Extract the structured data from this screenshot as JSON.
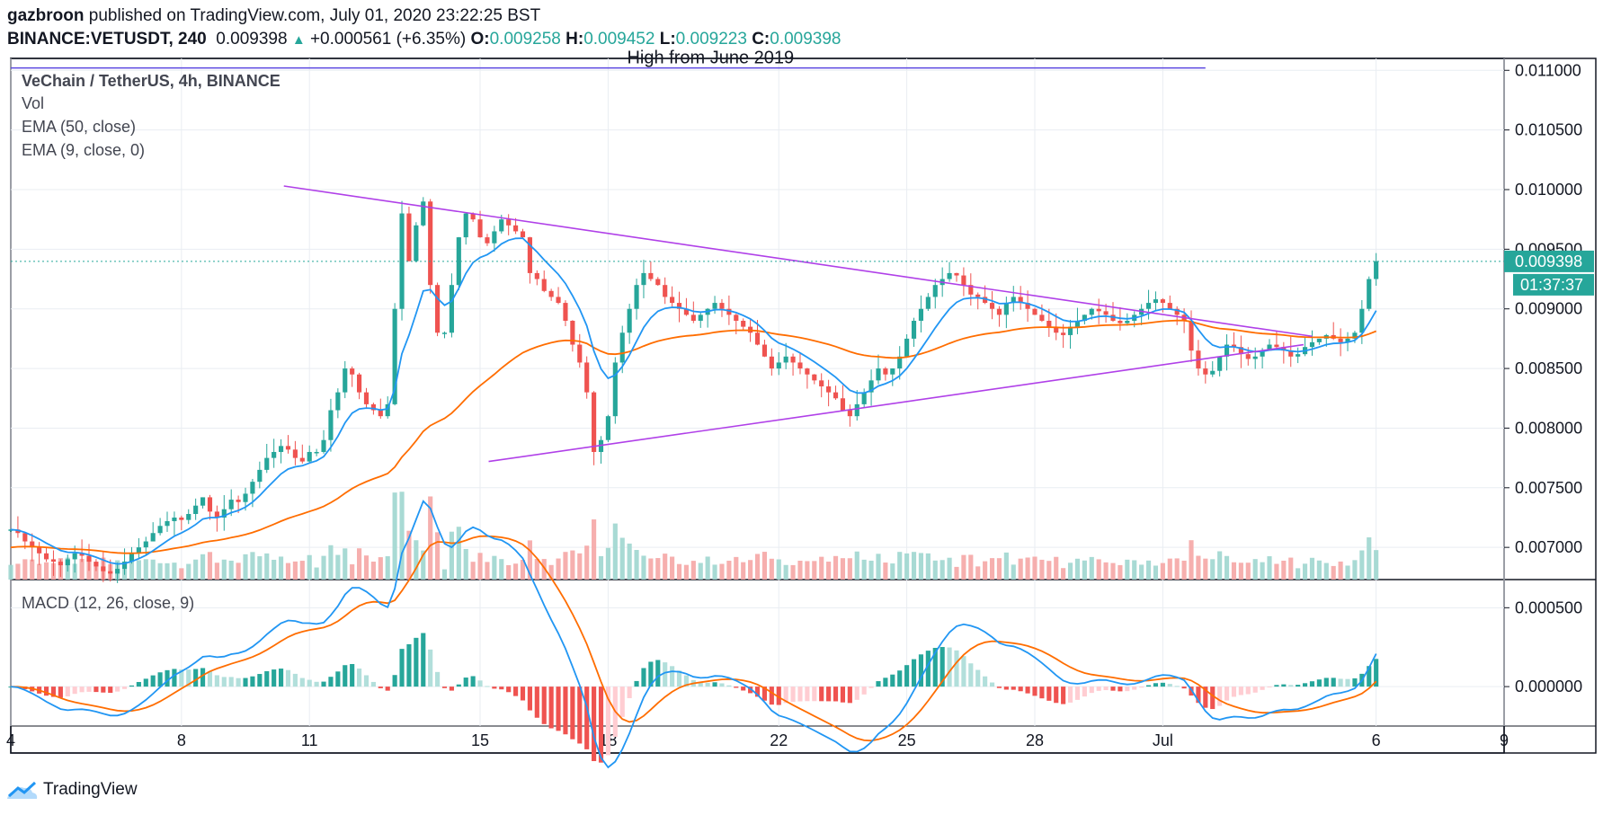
{
  "header": {
    "author": "gazbroon",
    "published_text": "published on TradingView.com, July 01, 2020 23:22:25 BST",
    "symbol": "BINANCE:VETUSDT, 240",
    "last": "0.009398",
    "change": "+0.000561 (+6.35%)",
    "o_label": "O:",
    "o": "0.009258",
    "h_label": "H:",
    "h": "0.009452",
    "l_label": "L:",
    "l": "0.009223",
    "c_label": "C:",
    "c": "0.009398"
  },
  "legend": {
    "title": "VeChain / TetherUS, 4h, BINANCE",
    "vol": "Vol",
    "ema50": "EMA (50, close)",
    "ema9": "EMA (9, close, 0)",
    "macd": "MACD (12, 26, close, 9)"
  },
  "annotation": {
    "text": "High from June 2019"
  },
  "price_badge": {
    "price": "0.009398",
    "countdown": "01:37:37"
  },
  "footer": {
    "brand": "TradingView"
  },
  "colors": {
    "up": "#26a69a",
    "down": "#ef5350",
    "ema9": "#2196f3",
    "ema50": "#ff6d00",
    "trend": "#b040e8",
    "resistance": "#5b48e0",
    "badge": "#26a69a"
  },
  "chart_data": {
    "type": "candlestick",
    "y_ticks": [
      "0.011000",
      "0.010500",
      "0.010000",
      "0.009500",
      "0.009000",
      "0.008500",
      "0.008000",
      "0.007500",
      "0.007000"
    ],
    "ylim": [
      0.00673,
      0.0111
    ],
    "x_ticks": [
      "4",
      "8",
      "11",
      "15",
      "18",
      "22",
      "25",
      "28",
      "Jul",
      "6",
      "9"
    ],
    "x_tick_days": [
      4,
      8,
      11,
      15,
      18,
      22,
      25,
      28,
      31,
      36,
      39
    ],
    "xlim_days": [
      4,
      39
    ],
    "candles_day_start": 4,
    "candle_step_days": 0.16667,
    "close": [
      0.00715,
      0.00712,
      0.00705,
      0.007,
      0.00695,
      0.0069,
      0.00688,
      0.00685,
      0.0069,
      0.00695,
      0.00693,
      0.00688,
      0.00684,
      0.0068,
      0.00678,
      0.00682,
      0.00688,
      0.00695,
      0.007,
      0.00705,
      0.00712,
      0.00718,
      0.00722,
      0.00725,
      0.00723,
      0.00728,
      0.00735,
      0.00742,
      0.0073,
      0.00725,
      0.00732,
      0.0074,
      0.00738,
      0.00745,
      0.00755,
      0.00765,
      0.00775,
      0.0078,
      0.00785,
      0.00782,
      0.00775,
      0.00772,
      0.0078,
      0.0078,
      0.0079,
      0.00815,
      0.0083,
      0.0085,
      0.00845,
      0.0083,
      0.0082,
      0.00815,
      0.0081,
      0.0082,
      0.009,
      0.0098,
      0.0094,
      0.0097,
      0.0099,
      0.0092,
      0.0088,
      0.0088,
      0.0092,
      0.0096,
      0.0098,
      0.00975,
      0.0096,
      0.00955,
      0.00965,
      0.00975,
      0.0097,
      0.00965,
      0.0096,
      0.0093,
      0.00925,
      0.00915,
      0.0091,
      0.00905,
      0.0089,
      0.0087,
      0.00855,
      0.0083,
      0.0078,
      0.0079,
      0.0081,
      0.00855,
      0.0088,
      0.009,
      0.0092,
      0.0093,
      0.00925,
      0.0092,
      0.0091,
      0.00905,
      0.009,
      0.00895,
      0.0089,
      0.00895,
      0.009,
      0.00905,
      0.009,
      0.00895,
      0.0089,
      0.00885,
      0.0088,
      0.0087,
      0.0086,
      0.0085,
      0.00855,
      0.0086,
      0.00855,
      0.0085,
      0.00845,
      0.0084,
      0.00835,
      0.0083,
      0.00825,
      0.00815,
      0.0081,
      0.0082,
      0.0083,
      0.0084,
      0.0085,
      0.00845,
      0.0085,
      0.0086,
      0.00875,
      0.0089,
      0.009,
      0.0091,
      0.0092,
      0.00925,
      0.0093,
      0.00928,
      0.0092,
      0.00912,
      0.0091,
      0.00905,
      0.009,
      0.00895,
      0.00905,
      0.0091,
      0.00905,
      0.009,
      0.00895,
      0.0089,
      0.00885,
      0.0088,
      0.00878,
      0.00885,
      0.0089,
      0.00895,
      0.009,
      0.00898,
      0.00895,
      0.0089,
      0.00888,
      0.0089,
      0.00895,
      0.009,
      0.00905,
      0.00908,
      0.00905,
      0.009,
      0.00895,
      0.0089,
      0.00865,
      0.0085,
      0.00845,
      0.00848,
      0.0086,
      0.0087,
      0.00868,
      0.00862,
      0.00858,
      0.0086,
      0.00865,
      0.0087,
      0.00868,
      0.00865,
      0.0086,
      0.00862,
      0.00868,
      0.00872,
      0.00875,
      0.00878,
      0.00875,
      0.00872,
      0.00875,
      0.0088,
      0.009,
      0.00925,
      0.0094
    ],
    "volume_note": "volume in panel units 0-1",
    "macd_ylim": [
      -0.00025,
      0.00065
    ],
    "macd_ticks": [
      "0.000500",
      "0.000000"
    ]
  }
}
